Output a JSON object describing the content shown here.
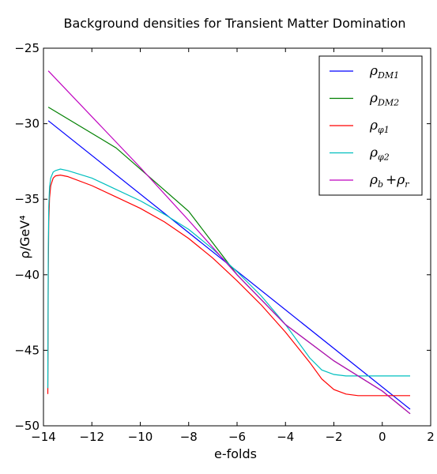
{
  "chart_data": {
    "type": "line",
    "title": "Background densities for Transient Matter Domination",
    "xlabel": "e-folds",
    "ylabel": "ρ/GeV⁴",
    "xlim": [
      -14,
      2
    ],
    "ylim": [
      -50,
      -25
    ],
    "xticks": [
      -14,
      -12,
      -10,
      -8,
      -6,
      -4,
      -2,
      0,
      2
    ],
    "yticks": [
      -25,
      -30,
      -35,
      -40,
      -45,
      -50
    ],
    "xtick_labels": [
      "−14",
      "−12",
      "−10",
      "−8",
      "−6",
      "−4",
      "−2",
      "0",
      "2"
    ],
    "ytick_labels": [
      "−25",
      "−30",
      "−35",
      "−40",
      "−45",
      "−50"
    ],
    "grid": false,
    "legend_position": "top-right",
    "series": [
      {
        "name": "ρ_{DM1}",
        "legend_main": "ρ",
        "legend_sub": "DM1",
        "color": "#0000ff",
        "x": [
          -13.8,
          1.15
        ],
        "y": [
          -29.8,
          -48.9
        ]
      },
      {
        "name": "ρ_{DM2}",
        "legend_main": "ρ",
        "legend_sub": "DM2",
        "color": "#008000",
        "x": [
          -13.8,
          -11,
          -8,
          -6,
          -4,
          -2,
          0,
          1.15
        ],
        "y": [
          -28.9,
          -31.6,
          -35.8,
          -40.0,
          -43.3,
          -45.7,
          -47.7,
          -49.2
        ]
      },
      {
        "name": "ρ_{φ1}",
        "legend_main": "ρ",
        "legend_sub": "φ1",
        "color": "#ff0000",
        "x": [
          -13.82,
          -13.8,
          -13.78,
          -13.75,
          -13.7,
          -13.6,
          -13.5,
          -13.3,
          -13.0,
          -12.0,
          -11.0,
          -10.0,
          -9.0,
          -8.0,
          -7.0,
          -6.0,
          -5.0,
          -4.0,
          -3.0,
          -2.5,
          -2.0,
          -1.5,
          -1.0,
          0.0,
          1.15
        ],
        "y": [
          -47.9,
          -40.0,
          -36.5,
          -34.9,
          -34.1,
          -33.6,
          -33.45,
          -33.4,
          -33.5,
          -34.1,
          -34.85,
          -35.6,
          -36.5,
          -37.6,
          -38.9,
          -40.4,
          -42.0,
          -43.8,
          -45.8,
          -46.9,
          -47.6,
          -47.9,
          -48.0,
          -48.0,
          -48.0
        ]
      },
      {
        "name": "ρ_{φ2}",
        "legend_main": "ρ",
        "legend_sub": "φ2",
        "color": "#00bfbf",
        "x": [
          -13.82,
          -13.8,
          -13.78,
          -13.75,
          -13.7,
          -13.6,
          -13.5,
          -13.3,
          -13.0,
          -12.0,
          -11.0,
          -10.0,
          -9.0,
          -8.0,
          -7.0,
          -6.0,
          -5.0,
          -4.0,
          -3.0,
          -2.5,
          -2.0,
          -1.5,
          -1.0,
          0.0,
          1.15
        ],
        "y": [
          -47.5,
          -38.5,
          -35.5,
          -34.2,
          -33.6,
          -33.2,
          -33.1,
          -33.0,
          -33.1,
          -33.6,
          -34.35,
          -35.1,
          -36.0,
          -37.0,
          -38.3,
          -39.8,
          -41.4,
          -43.3,
          -45.5,
          -46.3,
          -46.6,
          -46.7,
          -46.7,
          -46.7,
          -46.7
        ]
      },
      {
        "name": "ρ_b + ρ_r",
        "legend_main": "ρ",
        "legend_sub": "b",
        "legend_plus": "+ρ",
        "legend_sub2": "r",
        "color": "#bf00bf",
        "x": [
          -13.8,
          -10,
          -8,
          -6,
          -4,
          -2,
          0,
          1.15
        ],
        "y": [
          -26.5,
          -32.9,
          -36.4,
          -40.0,
          -43.3,
          -45.7,
          -47.7,
          -49.2
        ]
      }
    ]
  }
}
